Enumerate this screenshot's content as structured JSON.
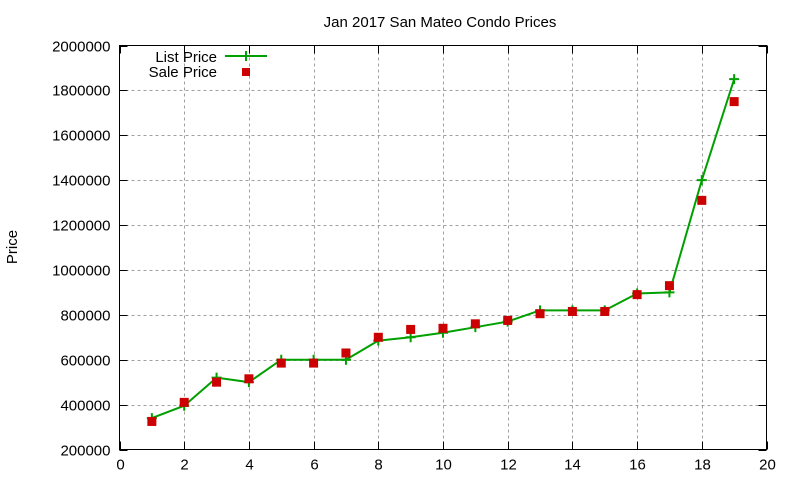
{
  "chart_data": {
    "type": "line",
    "title": "Jan 2017 San Mateo Condo Prices",
    "xlabel": "",
    "ylabel": "Price",
    "xlim": [
      0,
      20
    ],
    "ylim": [
      200000,
      2000000
    ],
    "xticks": [
      0,
      2,
      4,
      6,
      8,
      10,
      12,
      14,
      16,
      18,
      20
    ],
    "yticks": [
      200000,
      400000,
      600000,
      800000,
      1000000,
      1200000,
      1400000,
      1600000,
      1800000,
      2000000
    ],
    "grid": true,
    "legend_position": "top-left",
    "x": [
      1,
      2,
      3,
      4,
      5,
      6,
      7,
      8,
      9,
      10,
      11,
      12,
      13,
      14,
      15,
      16,
      17,
      18,
      19
    ],
    "series": [
      {
        "name": "List Price",
        "style": "linespoints",
        "marker": "plus",
        "color": "#00a000",
        "values": [
          340000,
          395000,
          520000,
          500000,
          600000,
          600000,
          600000,
          685000,
          700000,
          720000,
          745000,
          770000,
          820000,
          820000,
          820000,
          895000,
          900000,
          1400000,
          1850000
        ]
      },
      {
        "name": "Sale Price",
        "style": "points",
        "marker": "square",
        "color": "#cc0000",
        "values": [
          325000,
          410000,
          500000,
          515000,
          585000,
          585000,
          630000,
          700000,
          735000,
          740000,
          760000,
          775000,
          805000,
          815000,
          815000,
          890000,
          930000,
          1310000,
          1750000
        ]
      }
    ]
  }
}
